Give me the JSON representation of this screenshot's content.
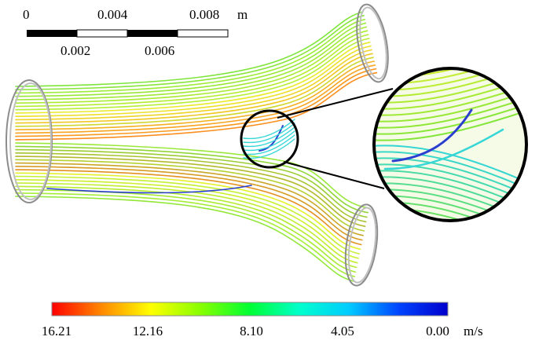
{
  "scale_bar": {
    "top_labels": [
      "0",
      "0.004",
      "0.008"
    ],
    "bottom_labels": [
      "0.002",
      "0.006"
    ],
    "unit": "m"
  },
  "colorbar": {
    "tick_labels": [
      "16.21",
      "12.16",
      "8.10",
      "4.05",
      "0.00"
    ],
    "unit": "m/s",
    "colors": [
      "#ff0000",
      "#ff8800",
      "#ffff00",
      "#88ff00",
      "#00ff33",
      "#00ffcc",
      "#00ccff",
      "#0044ff",
      "#0000cc"
    ]
  },
  "streamline_colors": {
    "inlet": "#aef03a",
    "mid": "#7ee53a",
    "branch_outer": "#e8f22a",
    "branch_hot": "#ff7a1a",
    "junction": "#35d6d6",
    "slow": "#2a3fd0"
  }
}
